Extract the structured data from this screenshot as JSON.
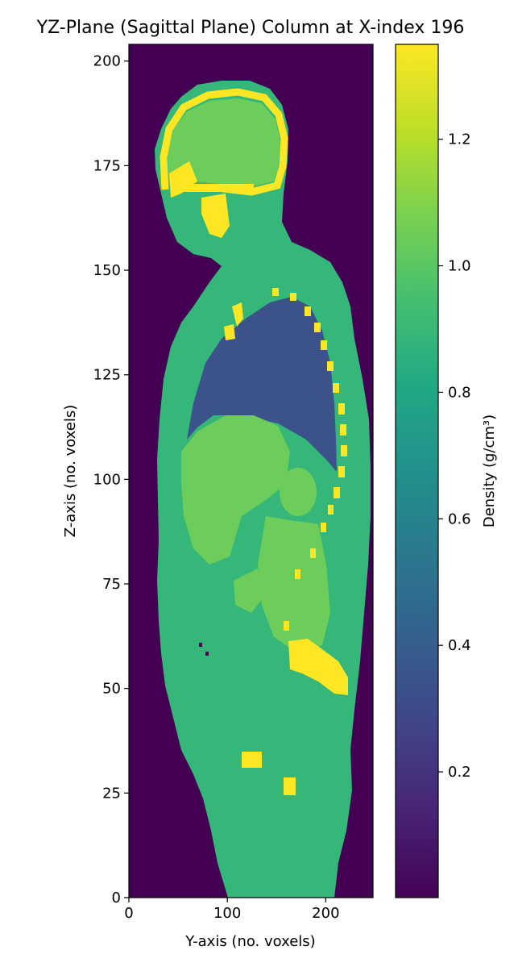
{
  "chart_data": {
    "type": "heatmap",
    "title": "YZ-Plane (Sagittal Plane) Column at X-index 196",
    "xlabel": "Y-axis (no. voxels)",
    "ylabel": "Z-axis (no. voxels)",
    "xlim": [
      0,
      248
    ],
    "ylim": [
      0,
      204
    ],
    "xticks": [
      0,
      100,
      200
    ],
    "yticks": [
      0,
      25,
      50,
      75,
      100,
      125,
      150,
      175,
      200
    ],
    "colorbar": {
      "label": "Density (g/cm³)",
      "range": [
        0.0012,
        1.35
      ],
      "ticks": [
        0.2,
        0.4,
        0.6,
        0.8,
        1.0,
        1.2
      ],
      "colormap": "viridis"
    },
    "regions": [
      {
        "name": "body soft tissue",
        "density": 0.95
      },
      {
        "name": "brain / organs",
        "density": 1.05
      },
      {
        "name": "lungs",
        "density": 0.26
      },
      {
        "name": "bone",
        "density": 1.35
      },
      {
        "name": "air",
        "density": 0.0012
      }
    ]
  }
}
